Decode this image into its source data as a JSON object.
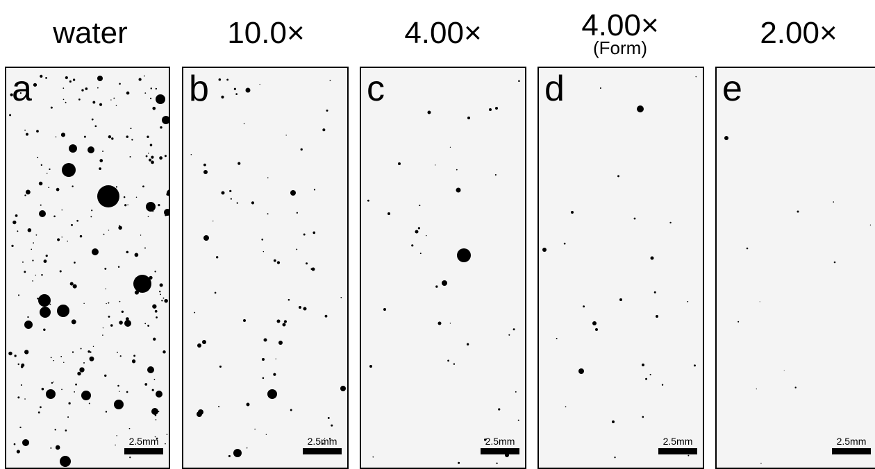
{
  "figure": {
    "scalebar_label": "2.5mm",
    "panels": [
      {
        "letter": "a",
        "title": "water",
        "subtitle": "",
        "density": "very-high"
      },
      {
        "letter": "b",
        "title": "10.0×",
        "subtitle": "",
        "density": "medium"
      },
      {
        "letter": "c",
        "title": "4.00×",
        "subtitle": "",
        "density": "low"
      },
      {
        "letter": "d",
        "title": "4.00×",
        "subtitle": "(Form)",
        "density": "low"
      },
      {
        "letter": "e",
        "title": "2.00×",
        "subtitle": "",
        "density": "very-low"
      }
    ],
    "colors": {
      "background": "#ffffff",
      "panel_fill": "#f4f4f4",
      "dots": "#000000"
    }
  }
}
